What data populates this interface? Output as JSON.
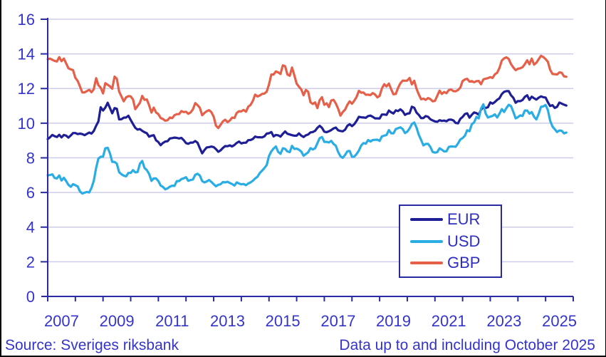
{
  "chart_data": {
    "type": "line",
    "title": "",
    "xlabel": "",
    "ylabel": "",
    "x_domain": [
      2007,
      2026
    ],
    "ylim": [
      0,
      16
    ],
    "grid": "horizontal",
    "frequency": "monthly",
    "points_start": "2007-01",
    "points_end": "2025-10",
    "x_tick_years": [
      2007,
      2008,
      2009,
      2010,
      2011,
      2012,
      2013,
      2014,
      2015,
      2016,
      2017,
      2018,
      2019,
      2020,
      2021,
      2022,
      2023,
      2024,
      2025,
      2026
    ],
    "x_tick_labels": [
      "2007",
      "2009",
      "2011",
      "2013",
      "2015",
      "2017",
      "2019",
      "2021",
      "2023",
      "2025"
    ],
    "x_tick_label_years": [
      2007.5,
      2009.5,
      2011.5,
      2013.5,
      2015.5,
      2017.5,
      2019.5,
      2021.5,
      2023.5,
      2025.5
    ],
    "y_ticks": [
      0,
      2,
      4,
      6,
      8,
      10,
      12,
      14,
      16
    ],
    "legend_position": "lower-right",
    "series": [
      {
        "name": "EUR",
        "color": "#1e1e96",
        "values": [
          9.08,
          9.19,
          9.32,
          9.25,
          9.2,
          9.33,
          9.18,
          9.32,
          9.28,
          9.17,
          9.29,
          9.43,
          9.43,
          9.37,
          9.4,
          9.37,
          9.31,
          9.38,
          9.46,
          9.4,
          9.55,
          9.85,
          10.1,
          10.92,
          10.73,
          10.9,
          11.18,
          10.88,
          10.57,
          10.87,
          10.83,
          10.22,
          10.23,
          10.32,
          10.33,
          10.43,
          10.19,
          9.95,
          9.73,
          9.63,
          9.66,
          9.56,
          9.48,
          9.42,
          9.22,
          9.28,
          9.31,
          9.01,
          8.91,
          8.73,
          8.86,
          8.94,
          8.96,
          9.12,
          9.14,
          9.17,
          9.15,
          9.12,
          9.15,
          9.02,
          8.85,
          8.81,
          8.88,
          8.88,
          8.97,
          8.87,
          8.56,
          8.26,
          8.45,
          8.6,
          8.62,
          8.65,
          8.62,
          8.5,
          8.35,
          8.43,
          8.57,
          8.68,
          8.67,
          8.72,
          8.66,
          8.74,
          8.86,
          8.94,
          8.83,
          8.87,
          8.87,
          9.02,
          9.03,
          9.09,
          9.23,
          9.19,
          9.19,
          9.18,
          9.24,
          9.4,
          9.42,
          9.49,
          9.24,
          9.32,
          9.3,
          9.22,
          9.39,
          9.52,
          9.39,
          9.35,
          9.31,
          9.28,
          9.28,
          9.41,
          9.28,
          9.2,
          9.3,
          9.35,
          9.47,
          9.49,
          9.56,
          9.73,
          9.85,
          9.73,
          9.51,
          9.48,
          9.53,
          9.6,
          9.7,
          9.75,
          9.59,
          9.55,
          9.53,
          9.62,
          9.85,
          9.94,
          9.83,
          9.94,
          10.13,
          10.37,
          10.34,
          10.33,
          10.31,
          10.41,
          10.44,
          10.37,
          10.28,
          10.28,
          10.27,
          10.5,
          10.5,
          10.48,
          10.73,
          10.63,
          10.56,
          10.74,
          10.7,
          10.8,
          10.69,
          10.48,
          10.55,
          10.57,
          10.95,
          10.89,
          10.61,
          10.48,
          10.29,
          10.3,
          10.41,
          10.37,
          10.23,
          10.16,
          10.1,
          10.08,
          10.17,
          10.13,
          10.15,
          10.11,
          10.2,
          10.21,
          10.16,
          10.01,
          9.99,
          10.25,
          10.36,
          10.53,
          10.57,
          10.32,
          10.49,
          10.62,
          10.58,
          10.49,
          10.78,
          10.93,
          10.88,
          10.92,
          11.2,
          11.13,
          11.22,
          11.35,
          11.44,
          11.68,
          11.81,
          11.85,
          11.85,
          11.61,
          11.47,
          11.18,
          11.28,
          11.27,
          11.34,
          11.52,
          11.61,
          11.35,
          11.53,
          11.44,
          11.36,
          11.47,
          11.55,
          11.5,
          11.48,
          11.21,
          10.99,
          11.04,
          10.88,
          10.95,
          11.19,
          11.13,
          11.07,
          11.02
        ]
      },
      {
        "name": "USD",
        "color": "#29ade4",
        "values": [
          6.99,
          7.01,
          7.05,
          6.84,
          6.81,
          6.98,
          6.69,
          6.85,
          6.66,
          6.44,
          6.33,
          6.48,
          6.42,
          6.35,
          6.06,
          5.94,
          5.99,
          6.03,
          6.0,
          6.27,
          6.67,
          7.42,
          7.96,
          8.06,
          8.07,
          8.55,
          8.58,
          8.26,
          7.77,
          7.76,
          7.66,
          7.17,
          7.05,
          6.97,
          6.93,
          7.13,
          7.13,
          7.29,
          7.16,
          7.18,
          7.66,
          7.82,
          7.42,
          7.29,
          7.07,
          6.67,
          6.81,
          6.81,
          6.66,
          6.4,
          6.32,
          6.18,
          6.24,
          6.34,
          6.39,
          6.38,
          6.66,
          6.66,
          6.77,
          6.82,
          6.88,
          6.67,
          6.72,
          6.75,
          7.02,
          7.08,
          6.98,
          6.66,
          6.58,
          6.64,
          6.72,
          6.61,
          6.48,
          6.36,
          6.44,
          6.48,
          6.6,
          6.58,
          6.62,
          6.55,
          6.49,
          6.4,
          6.58,
          6.52,
          6.47,
          6.49,
          6.42,
          6.52,
          6.58,
          6.68,
          6.81,
          6.91,
          7.12,
          7.26,
          7.41,
          7.58,
          8.1,
          8.37,
          8.54,
          8.66,
          8.34,
          8.23,
          8.55,
          8.52,
          8.37,
          8.33,
          8.69,
          8.51,
          8.53,
          8.47,
          8.36,
          8.12,
          8.22,
          8.32,
          8.56,
          8.48,
          8.55,
          8.84,
          9.14,
          9.2,
          8.92,
          8.92,
          8.89,
          8.98,
          8.8,
          8.7,
          8.34,
          8.09,
          8.0,
          8.17,
          8.38,
          8.4,
          8.06,
          8.07,
          8.22,
          8.42,
          8.71,
          8.85,
          8.82,
          9.03,
          8.94,
          9.03,
          9.04,
          9.05,
          8.98,
          9.24,
          9.28,
          9.32,
          9.6,
          9.42,
          9.41,
          9.66,
          9.71,
          9.76,
          9.66,
          9.43,
          9.51,
          9.7,
          9.95,
          10.04,
          9.75,
          9.33,
          9.03,
          8.72,
          8.8,
          8.81,
          8.63,
          8.34,
          8.3,
          8.33,
          8.55,
          8.47,
          8.37,
          8.38,
          8.63,
          8.66,
          8.65,
          8.64,
          8.83,
          9.06,
          9.14,
          9.28,
          9.59,
          9.54,
          9.94,
          10.05,
          10.36,
          10.28,
          10.84,
          11.09,
          10.56,
          10.33,
          10.38,
          10.42,
          10.51,
          10.33,
          10.55,
          10.81,
          10.65,
          10.87,
          11.06,
          10.99,
          10.66,
          10.28,
          10.35,
          10.45,
          10.42,
          10.73,
          10.73,
          10.55,
          10.64,
          10.37,
          10.22,
          10.53,
          10.94,
          10.97,
          11.05,
          10.75,
          10.14,
          9.8,
          9.65,
          9.49,
          9.58,
          9.56,
          9.41,
          9.46
        ]
      },
      {
        "name": "GBP",
        "color": "#e65f48",
        "values": [
          13.69,
          13.73,
          13.66,
          13.6,
          13.56,
          13.81,
          13.58,
          13.73,
          13.45,
          13.17,
          13.11,
          13.06,
          12.62,
          12.44,
          12.12,
          11.77,
          11.78,
          11.85,
          11.93,
          11.79,
          11.96,
          12.6,
          12.19,
          12.05,
          11.72,
          12.31,
          12.22,
          12.13,
          11.99,
          12.69,
          12.56,
          11.82,
          11.54,
          11.26,
          11.49,
          11.56,
          11.55,
          11.37,
          10.81,
          10.99,
          11.18,
          11.57,
          11.35,
          11.37,
          11.03,
          10.61,
          10.9,
          10.62,
          10.52,
          10.3,
          10.24,
          10.14,
          10.17,
          10.33,
          10.29,
          10.46,
          10.52,
          10.52,
          10.7,
          10.64,
          10.66,
          10.54,
          10.62,
          10.8,
          11.16,
          11.04,
          10.89,
          10.46,
          10.59,
          10.69,
          10.75,
          10.64,
          10.37,
          9.86,
          9.72,
          9.91,
          10.1,
          10.2,
          10.06,
          10.15,
          10.32,
          10.3,
          10.59,
          10.69,
          10.68,
          10.77,
          10.66,
          10.95,
          11.05,
          11.29,
          11.65,
          11.54,
          11.6,
          11.69,
          11.71,
          11.82,
          12.23,
          12.81,
          12.81,
          12.99,
          12.93,
          12.84,
          13.34,
          13.29,
          12.81,
          12.74,
          13.21,
          12.77,
          12.28,
          12.11,
          11.95,
          11.61,
          11.92,
          11.81,
          11.21,
          11.11,
          11.2,
          10.87,
          11.33,
          11.5,
          11.06,
          11.15,
          10.93,
          11.31,
          11.35,
          11.14,
          10.84,
          10.44,
          10.64,
          10.78,
          11.06,
          11.26,
          11.12,
          11.3,
          11.51,
          11.87,
          11.76,
          11.77,
          11.64,
          11.65,
          11.62,
          11.74,
          11.66,
          11.49,
          11.58,
          12.01,
          12.25,
          12.12,
          12.29,
          11.96,
          11.67,
          11.69,
          12.04,
          12.3,
          12.46,
          12.45,
          12.46,
          12.61,
          12.24,
          12.45,
          11.99,
          11.66,
          11.38,
          11.42,
          11.35,
          11.45,
          11.39,
          11.26,
          11.29,
          11.58,
          11.88,
          11.69,
          11.8,
          11.73,
          11.91,
          11.95,
          11.85,
          11.84,
          11.92,
          12.05,
          12.43,
          12.53,
          12.56,
          12.4,
          12.43,
          12.36,
          12.43,
          12.44,
          12.25,
          12.53,
          12.57,
          12.6,
          12.66,
          12.61,
          12.82,
          12.91,
          13.19,
          13.62,
          13.74,
          13.8,
          13.71,
          13.41,
          13.22,
          13.06,
          13.14,
          13.17,
          13.23,
          13.41,
          13.63,
          13.4,
          13.73,
          13.38,
          13.49,
          13.69,
          13.89,
          13.82,
          13.7,
          13.54,
          13.08,
          12.84,
          12.83,
          12.81,
          12.93,
          12.91,
          12.7,
          12.68
        ]
      }
    ]
  },
  "footer": {
    "source": "Source: Sveriges riksbank",
    "note": "Data up to and including October 2025"
  },
  "colors": {
    "axis": "#2a2aa5",
    "grid": "#cdcdeb",
    "tick_text": "#3434cd",
    "legend_border": "#2a2aa0",
    "legend_text": "#2e2ec0",
    "frame": "#000000"
  }
}
